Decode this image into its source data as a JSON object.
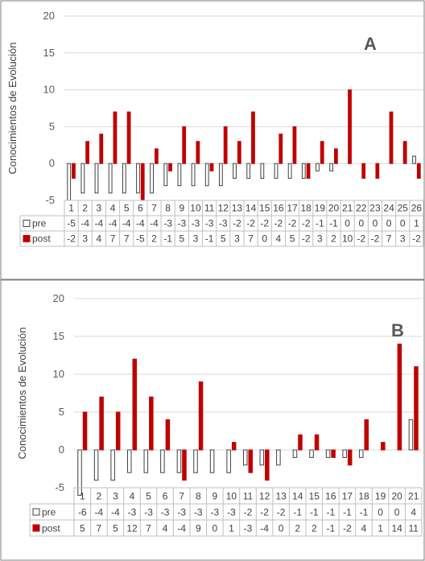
{
  "chart_data": [
    {
      "type": "bar",
      "panel_label": "A",
      "ylabel": "Conocimientos de Evolución",
      "ylim": [
        -5,
        20
      ],
      "yticks": [
        "-5",
        "0",
        "5",
        "10",
        "15",
        "20"
      ],
      "categories": [
        "1",
        "2",
        "3",
        "4",
        "5",
        "6",
        "7",
        "8",
        "9",
        "10",
        "11",
        "12",
        "13",
        "14",
        "15",
        "16",
        "17",
        "18",
        "19",
        "20",
        "21",
        "22",
        "23",
        "24",
        "25",
        "26"
      ],
      "series": [
        {
          "name": "pre",
          "color": "#ffffff",
          "stroke": "#404040",
          "values": [
            -5,
            -4,
            -4,
            -4,
            -4,
            -4,
            -4,
            -3,
            -3,
            -3,
            -3,
            -3,
            -2,
            -2,
            -2,
            -2,
            -2,
            -2,
            -1,
            -1,
            0,
            0,
            0,
            0,
            0,
            1
          ]
        },
        {
          "name": "post",
          "color": "#c00000",
          "stroke": "#c00000",
          "values": [
            -2,
            3,
            4,
            7,
            7,
            -5,
            2,
            -1,
            5,
            3,
            -1,
            5,
            3,
            7,
            0,
            4,
            5,
            -2,
            3,
            2,
            10,
            -2,
            -2,
            7,
            3,
            -2
          ]
        }
      ],
      "data_table": true,
      "grid": "horizontal"
    },
    {
      "type": "bar",
      "panel_label": "B",
      "ylabel": "Conocimientos de Evolución",
      "ylim": [
        -5,
        20
      ],
      "yticks": [
        "-5",
        "0",
        "5",
        "10",
        "15",
        "20"
      ],
      "categories": [
        "1",
        "2",
        "3",
        "4",
        "5",
        "6",
        "7",
        "8",
        "9",
        "10",
        "11",
        "12",
        "13",
        "14",
        "15",
        "16",
        "17",
        "18",
        "19",
        "20",
        "21"
      ],
      "series": [
        {
          "name": "pre",
          "color": "#ffffff",
          "stroke": "#404040",
          "values": [
            -6,
            -4,
            -4,
            -3,
            -3,
            -3,
            -3,
            -3,
            -3,
            -3,
            -2,
            -2,
            -2,
            -1,
            -1,
            -1,
            -1,
            -1,
            0,
            0,
            4
          ]
        },
        {
          "name": "post",
          "color": "#c00000",
          "stroke": "#c00000",
          "values": [
            5,
            7,
            5,
            12,
            7,
            4,
            -4,
            9,
            0,
            1,
            -3,
            -4,
            0,
            2,
            2,
            -1,
            -2,
            4,
            1,
            14,
            11
          ]
        }
      ],
      "data_table": true,
      "grid": "horizontal"
    }
  ]
}
